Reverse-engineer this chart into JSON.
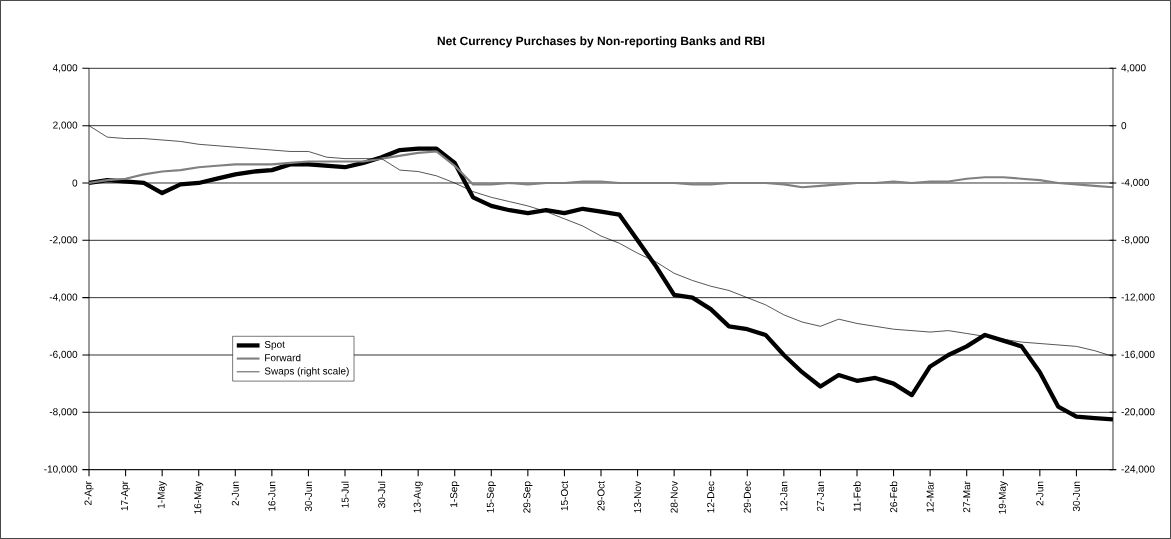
{
  "chart_data": {
    "type": "line",
    "title": "Net Currency Purchases by Non-reporting Banks and RBI",
    "categories": [
      "2-Apr",
      null,
      "17-Apr",
      null,
      "1-May",
      null,
      "16-May",
      null,
      "2-Jun",
      null,
      "16-Jun",
      null,
      "30-Jun",
      null,
      "15-Jul",
      null,
      "30-Jul",
      null,
      "13-Aug",
      null,
      "1-Sep",
      null,
      "15-Sep",
      null,
      "29-Sep",
      null,
      "15-Oct",
      null,
      "29-Oct",
      null,
      "13-Nov",
      null,
      "28-Nov",
      null,
      "12-Dec",
      null,
      "29-Dec",
      null,
      "12-Jan",
      null,
      "27-Jan",
      null,
      "11-Feb",
      null,
      "26-Feb",
      null,
      "12-Mar",
      null,
      "27-Mar",
      null,
      "19-May",
      null,
      "2-Jun",
      null,
      "30-Jun",
      null,
      null
    ],
    "series": [
      {
        "name": "Spot",
        "color": "#000000",
        "values": [
          0,
          100,
          50,
          0,
          -350,
          -50,
          0,
          150,
          300,
          400,
          450,
          650,
          650,
          600,
          550,
          700,
          900,
          1150,
          1200,
          1200,
          700,
          -500,
          -800,
          -950,
          -1050,
          -950,
          -1050,
          -900,
          -1000,
          -1100,
          -2000,
          -2900,
          -3900,
          -4000,
          -4400,
          -5000,
          -5100,
          -5300,
          -6000,
          -6600,
          -7100,
          -6700,
          -6900,
          -6800,
          -7000,
          -7400,
          -6400,
          -6000,
          -5700,
          -5300,
          -5500,
          -5700,
          -6600,
          -7800,
          -8150,
          -8200,
          -8250
        ]
      },
      {
        "name": "Forward",
        "color": "#808080",
        "values": [
          0,
          100,
          150,
          300,
          400,
          450,
          550,
          600,
          650,
          650,
          650,
          700,
          750,
          750,
          750,
          750,
          850,
          950,
          1050,
          1100,
          600,
          -50,
          -50,
          0,
          -50,
          0,
          0,
          50,
          50,
          0,
          0,
          0,
          0,
          -50,
          -50,
          0,
          0,
          0,
          -50,
          -150,
          -100,
          -50,
          0,
          0,
          50,
          0,
          50,
          50,
          150,
          200,
          200,
          150,
          100,
          0,
          -50,
          -100,
          -150
        ]
      },
      {
        "name": "Swaps (right scale)",
        "color": "#000000",
        "axis": "y2",
        "values": [
          0,
          -800,
          -900,
          -900,
          -1000,
          -1100,
          -1300,
          -1400,
          -1500,
          -1600,
          -1700,
          -1800,
          -1800,
          -2200,
          -2300,
          -2300,
          -2300,
          -3100,
          -3200,
          -3500,
          -4000,
          -4600,
          -5000,
          -5300,
          -5600,
          -6000,
          -6500,
          -7000,
          -7700,
          -8200,
          -8900,
          -9500,
          -10300,
          -10800,
          -11200,
          -11500,
          -12000,
          -12500,
          -13200,
          -13700,
          -14000,
          -13500,
          -13800,
          -14000,
          -14200,
          -14300,
          -14400,
          -14300,
          -14500,
          -14700,
          -14900,
          -15100,
          -15200,
          -15300,
          -15400,
          -15700,
          -16100
        ]
      }
    ],
    "ylim": [
      -10000,
      4000
    ],
    "yticks": [
      {
        "value": -10000,
        "label": "-10,000"
      },
      {
        "value": -8000,
        "label": "-8,000"
      },
      {
        "value": -6000,
        "label": "-6,000"
      },
      {
        "value": -4000,
        "label": "-4,000"
      },
      {
        "value": -2000,
        "label": "-2,000"
      },
      {
        "value": 0,
        "label": "0"
      },
      {
        "value": 2000,
        "label": "2,000"
      },
      {
        "value": 4000,
        "label": "4,000"
      }
    ],
    "y2lim": [
      -24000,
      4000
    ],
    "y2ticks": [
      {
        "value": -24000,
        "label": "-24,000"
      },
      {
        "value": -20000,
        "label": "-20,000"
      },
      {
        "value": -16000,
        "label": "-16,000"
      },
      {
        "value": -12000,
        "label": "-12,000"
      },
      {
        "value": -8000,
        "label": "-8,000"
      },
      {
        "value": -4000,
        "label": "-4,000"
      },
      {
        "value": 0,
        "label": "0"
      },
      {
        "value": 4000,
        "label": "4,000"
      }
    ],
    "grid": "y",
    "legend": "bottom left",
    "marker": "none",
    "line_style": "solid"
  }
}
